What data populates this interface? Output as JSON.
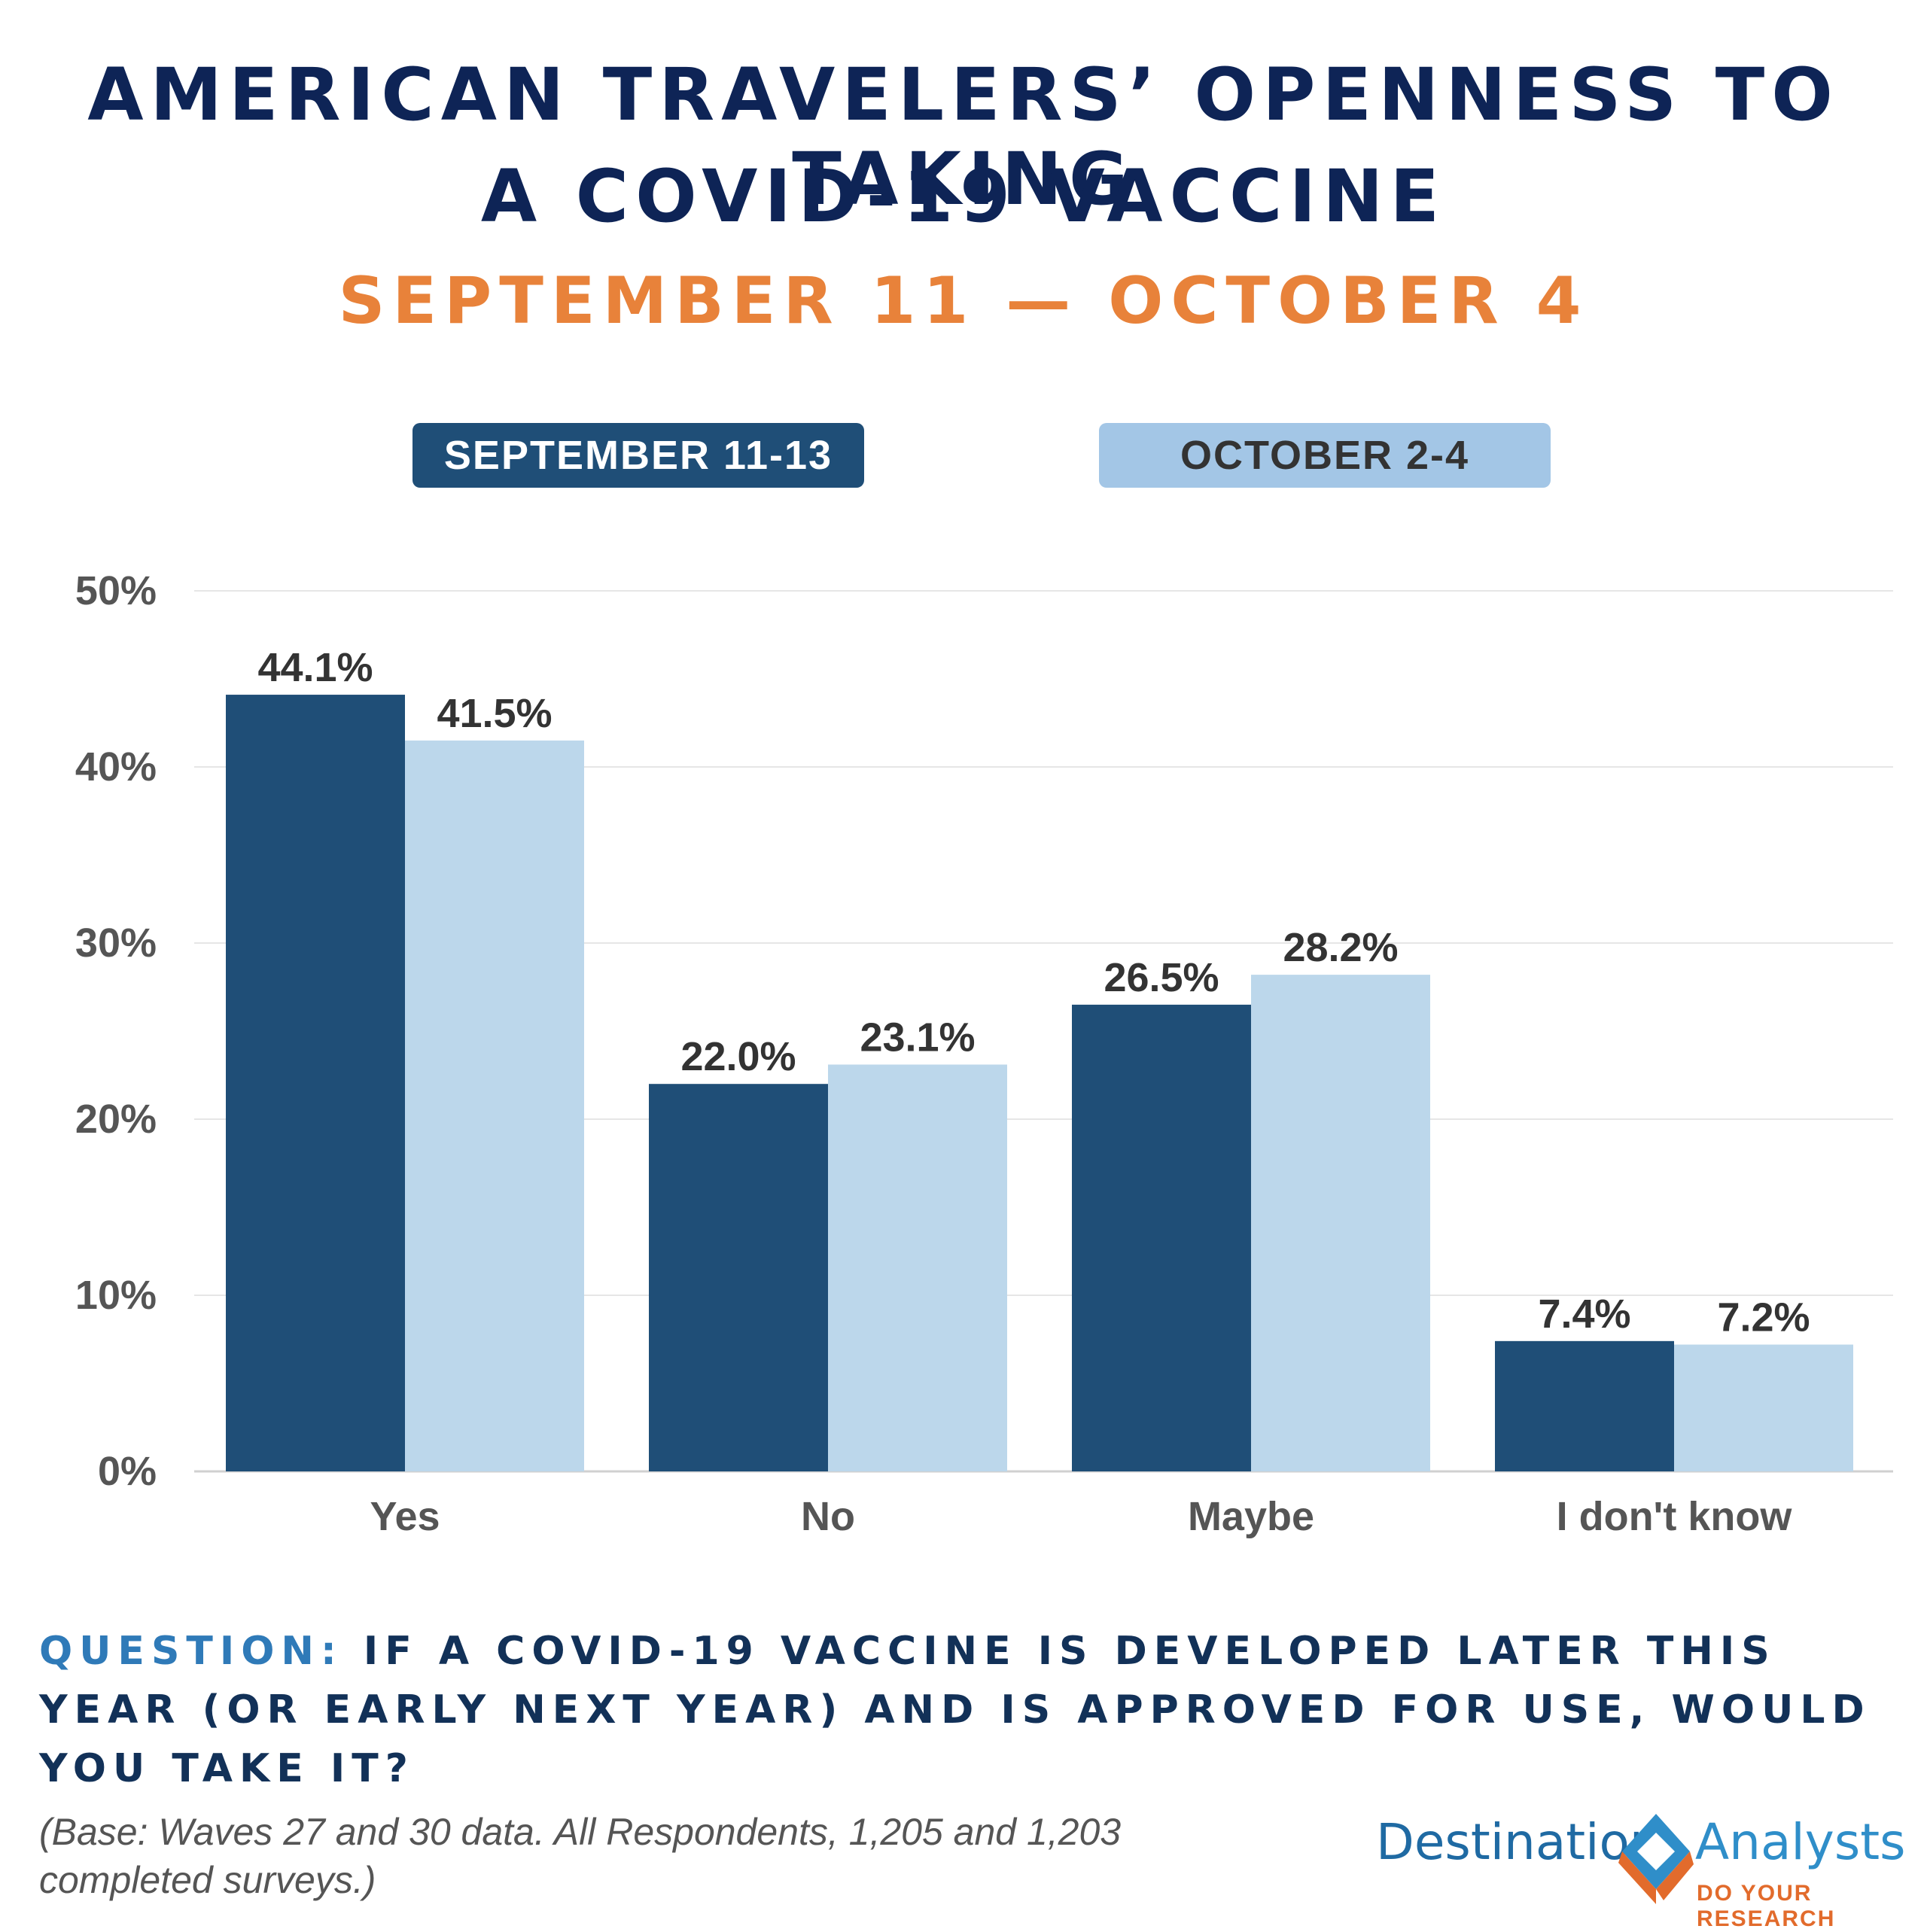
{
  "header": {
    "title_line1": "AMERICAN TRAVELERS’ OPENNESS TO TAKING",
    "title_line2": "A COVID-19 VACCINE",
    "subtitle": "SEPTEMBER 11 — OCTOBER 4"
  },
  "legend": {
    "series1": "SEPTEMBER 11-13",
    "series2": "OCTOBER 2-4"
  },
  "colors": {
    "series1": "#1f4e77",
    "series2": "#bcd7eb",
    "title": "#0e2456",
    "accent": "#e8823a"
  },
  "chart_data": {
    "type": "bar",
    "categories": [
      "Yes",
      "No",
      "Maybe",
      "I don't know"
    ],
    "series": [
      {
        "name": "SEPTEMBER 11-13",
        "values": [
          44.1,
          22.0,
          26.5,
          7.4
        ],
        "labels": [
          "44.1%",
          "22.0%",
          "26.5%",
          "7.4%"
        ]
      },
      {
        "name": "OCTOBER 2-4",
        "values": [
          41.5,
          23.1,
          28.2,
          7.2
        ],
        "labels": [
          "41.5%",
          "23.1%",
          "28.2%",
          "7.2%"
        ]
      }
    ],
    "yticks": [
      "0%",
      "10%",
      "20%",
      "30%",
      "40%",
      "50%"
    ],
    "ylim": [
      0,
      50
    ],
    "grid": true,
    "legend_position": "top"
  },
  "footer": {
    "question_label": "QUESTION:",
    "question_text": " IF A COVID-19 VACCINE IS DEVELOPED LATER THIS YEAR (OR EARLY NEXT YEAR) AND IS APPROVED FOR USE, WOULD YOU TAKE IT?",
    "note": "(Base: Waves 27 and 30 data. All Respondents, 1,205 and 1,203 completed surveys.)"
  },
  "logo": {
    "name_part1": "Destination",
    "name_part2": "Analysts",
    "tagline": "DO YOUR RESEARCH"
  }
}
